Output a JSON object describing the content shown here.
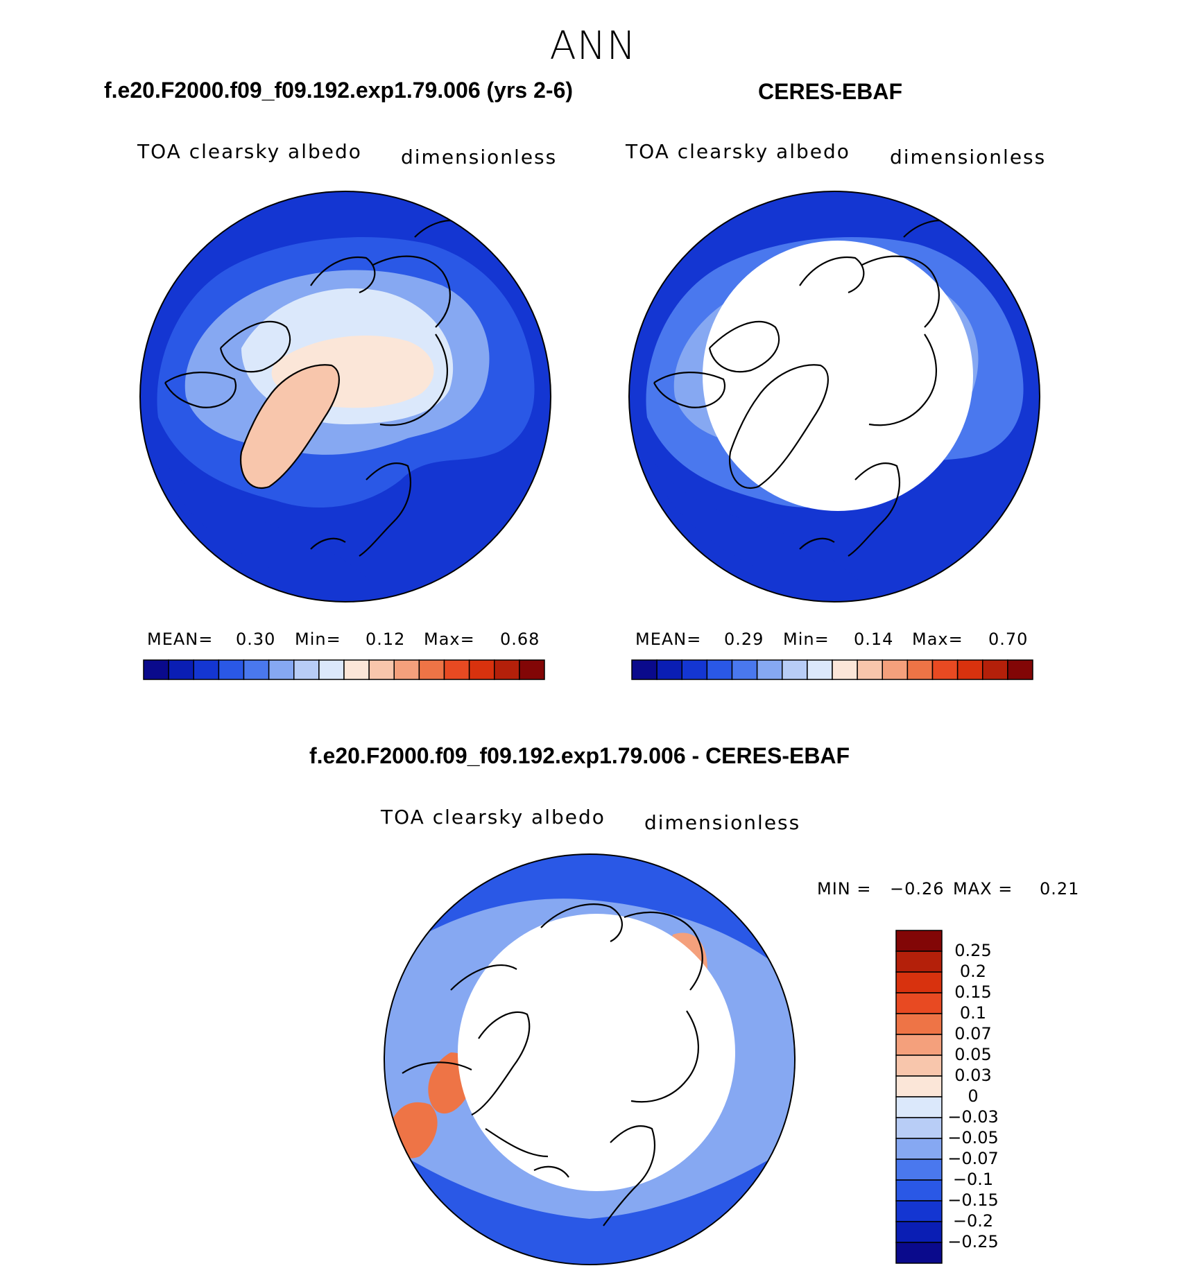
{
  "season": "ANN",
  "panels": [
    {
      "title": "f.e20.F2000.f09_f09.192.exp1.79.006 (yrs 2-6)",
      "variable": "TOA clearsky albedo",
      "units": "dimensionless",
      "stats": {
        "mean_label": "MEAN=",
        "mean": "0.30",
        "min_label": "Min=",
        "min": "0.12",
        "max_label": "Max=",
        "max": "0.68"
      }
    },
    {
      "title": "CERES-EBAF",
      "variable": "TOA clearsky albedo",
      "units": "dimensionless",
      "stats": {
        "mean_label": "MEAN=",
        "mean": "0.29",
        "min_label": "Min=",
        "min": "0.14",
        "max_label": "Max=",
        "max": "0.70"
      }
    }
  ],
  "diff_panel": {
    "title": "f.e20.F2000.f09_f09.192.exp1.79.006 - CERES-EBAF",
    "variable": "TOA clearsky albedo",
    "units": "dimensionless",
    "stats": {
      "min_label": "MIN =",
      "min": "−0.26",
      "max_label": "MAX =",
      "max": "0.21"
    }
  },
  "colorbar_abs": {
    "ticks": [
      "0.05",
      "0.15",
      "0.25",
      "0.4",
      "0.6",
      "0.75",
      "0.85",
      "0.95"
    ],
    "colors": [
      "#0a0a8c",
      "#0a1eb4",
      "#1436d2",
      "#2a58e6",
      "#4a78ee",
      "#86a8f2",
      "#b8cdf6",
      "#dbe8fb",
      "#fbe6d8",
      "#f8c6ac",
      "#f4a07c",
      "#ee7446",
      "#e84a22",
      "#d8320e",
      "#b4200a",
      "#820606"
    ]
  },
  "colorbar_diff": {
    "ticks": [
      "0.25",
      "0.2",
      "0.15",
      "0.1",
      "0.07",
      "0.05",
      "0.03",
      "0",
      "−0.03",
      "−0.05",
      "−0.07",
      "−0.1",
      "−0.15",
      "−0.2",
      "−0.25"
    ],
    "colors": [
      "#820606",
      "#b4200a",
      "#d8320e",
      "#e84a22",
      "#ee7446",
      "#f4a07c",
      "#f8c6ac",
      "#fbe6d8",
      "#dbe8fb",
      "#b8cdf6",
      "#86a8f2",
      "#4a78ee",
      "#2a58e6",
      "#1436d2",
      "#0a1eb4",
      "#0a0a8c"
    ]
  },
  "map_colors": {
    "ocean_dark": "#1436d2",
    "ocean_mid": "#2a58e6",
    "land_mid": "#4a78ee",
    "land_light": "#86a8f2",
    "ice_light": "#dbe8fb",
    "ice_pale": "#fbe6d8",
    "greenland": "#f8c6ac",
    "missing": "#ffffff",
    "diff_pos_strong": "#ee7446",
    "diff_pos": "#f4a07c",
    "diff_neg": "#86a8f2",
    "diff_neg_strong": "#2a58e6"
  }
}
